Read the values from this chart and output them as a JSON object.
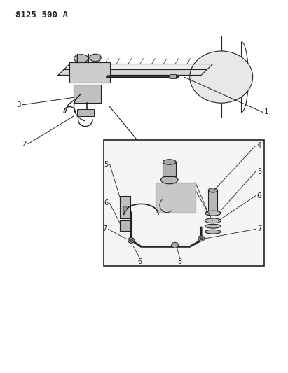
{
  "title_code": "8125 500 A",
  "background_color": "#ffffff",
  "line_color": "#222222",
  "fig_width": 4.11,
  "fig_height": 5.33,
  "dpi": 100
}
